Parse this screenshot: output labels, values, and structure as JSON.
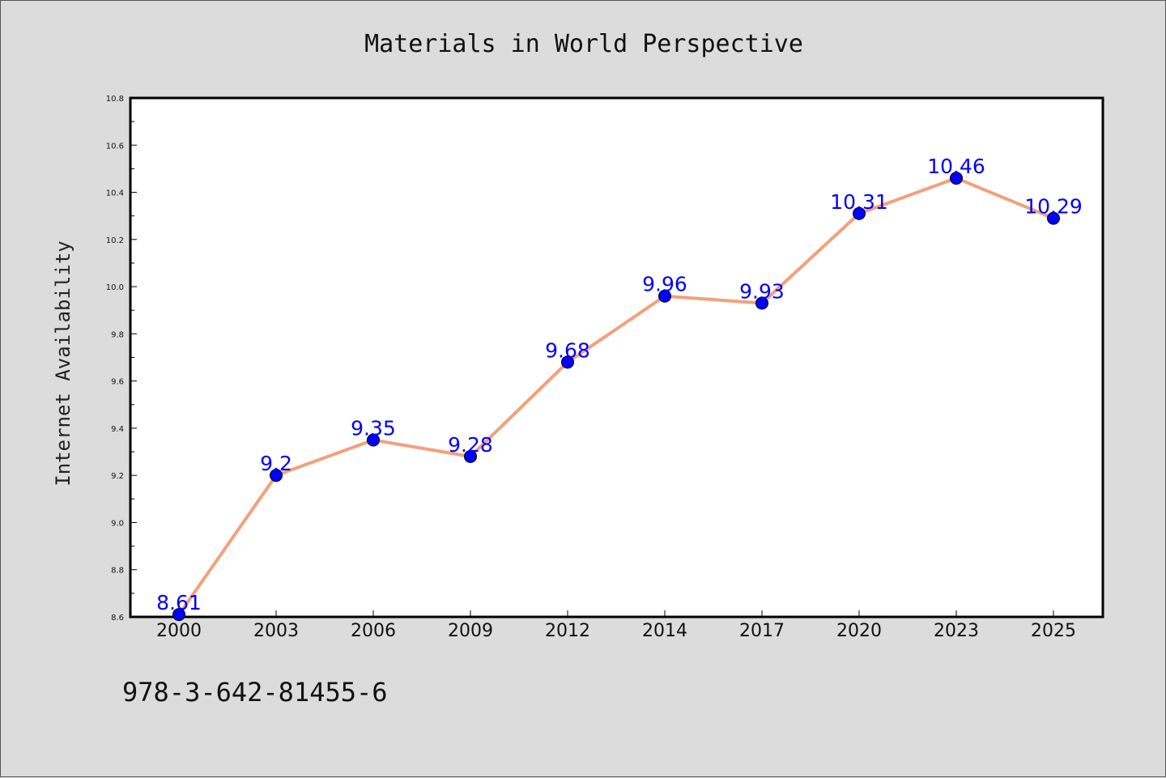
{
  "chart_data": {
    "type": "line",
    "title": "Materials in World Perspective",
    "xlabel": "",
    "ylabel": "Internet Availability",
    "categories": [
      "2000",
      "2003",
      "2006",
      "2009",
      "2012",
      "2014",
      "2017",
      "2020",
      "2023",
      "2025"
    ],
    "series": [
      {
        "values": [
          8.61,
          9.2,
          9.35,
          9.28,
          9.68,
          9.96,
          9.93,
          10.31,
          10.46,
          10.29
        ],
        "labels": [
          "8.61",
          "9.2",
          "9.35",
          "9.28",
          "9.68",
          "9.96",
          "9.93",
          "10.31",
          "10.46",
          "10.29"
        ],
        "line_color": "#f4a07c",
        "marker_color": "#0000ff"
      }
    ],
    "ylim": [
      8.6,
      10.8
    ],
    "yticks": [
      "8.6",
      "8.8",
      "9.0",
      "9.2",
      "9.4",
      "9.6",
      "9.8",
      "10.0",
      "10.2",
      "10.4",
      "10.6",
      "10.8"
    ],
    "grid": false,
    "legend": "none"
  },
  "footer": {
    "isbn": "978-3-642-81455-6"
  }
}
